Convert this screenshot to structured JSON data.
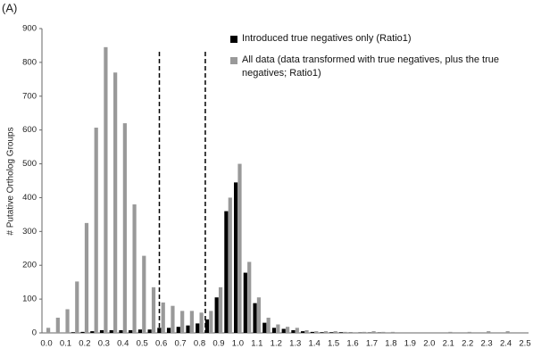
{
  "chart_data": {
    "type": "bar",
    "panel_label": "(A)",
    "y_label": "# Putative Ortholog Groups",
    "categories": [
      "0.0",
      null,
      "0.1",
      null,
      "0.2",
      null,
      "0.3",
      null,
      "0.4",
      null,
      "0.5",
      null,
      "0.6",
      null,
      "0.7",
      null,
      "0.8",
      null,
      "0.9",
      null,
      "1.0",
      null,
      "1.1",
      null,
      "1.2",
      null,
      "1.3",
      null,
      "1.4",
      null,
      "1.5",
      null,
      "1.6",
      null,
      "1.7",
      null,
      "1.8",
      null,
      "1.9",
      null,
      "2.0",
      null,
      "2.1",
      null,
      "2.2",
      null,
      "2.3",
      null,
      "2.4",
      null,
      "2.5"
    ],
    "series": [
      {
        "name": "Introduced true negatives only (Ratio1)",
        "color": "#000000",
        "values": [
          0,
          0,
          0,
          2,
          3,
          5,
          8,
          8,
          8,
          8,
          10,
          10,
          15,
          15,
          18,
          22,
          28,
          40,
          105,
          360,
          445,
          178,
          88,
          30,
          15,
          12,
          8,
          5,
          3,
          2,
          2,
          2,
          1,
          1,
          1,
          1,
          0,
          0,
          0,
          0,
          0,
          0,
          0,
          0,
          0,
          0,
          0,
          0,
          0,
          0,
          0
        ]
      },
      {
        "name": "All data (data transformed with true negatives, plus the true negatives; Ratio1)",
        "color": "#999999",
        "values": [
          15,
          45,
          70,
          152,
          325,
          607,
          845,
          770,
          620,
          380,
          228,
          135,
          90,
          80,
          65,
          65,
          60,
          65,
          135,
          400,
          500,
          210,
          105,
          45,
          25,
          18,
          15,
          8,
          5,
          5,
          5,
          3,
          2,
          3,
          5,
          3,
          3,
          2,
          2,
          2,
          2,
          2,
          3,
          2,
          3,
          2,
          5,
          2,
          5,
          2,
          0
        ]
      }
    ],
    "ylim": [
      0,
      900
    ],
    "yticks": [
      0,
      100,
      200,
      300,
      400,
      500,
      600,
      700,
      800,
      900
    ],
    "thresholds": [
      0.59,
      0.83
    ],
    "legend": "top-right",
    "grid": false
  }
}
